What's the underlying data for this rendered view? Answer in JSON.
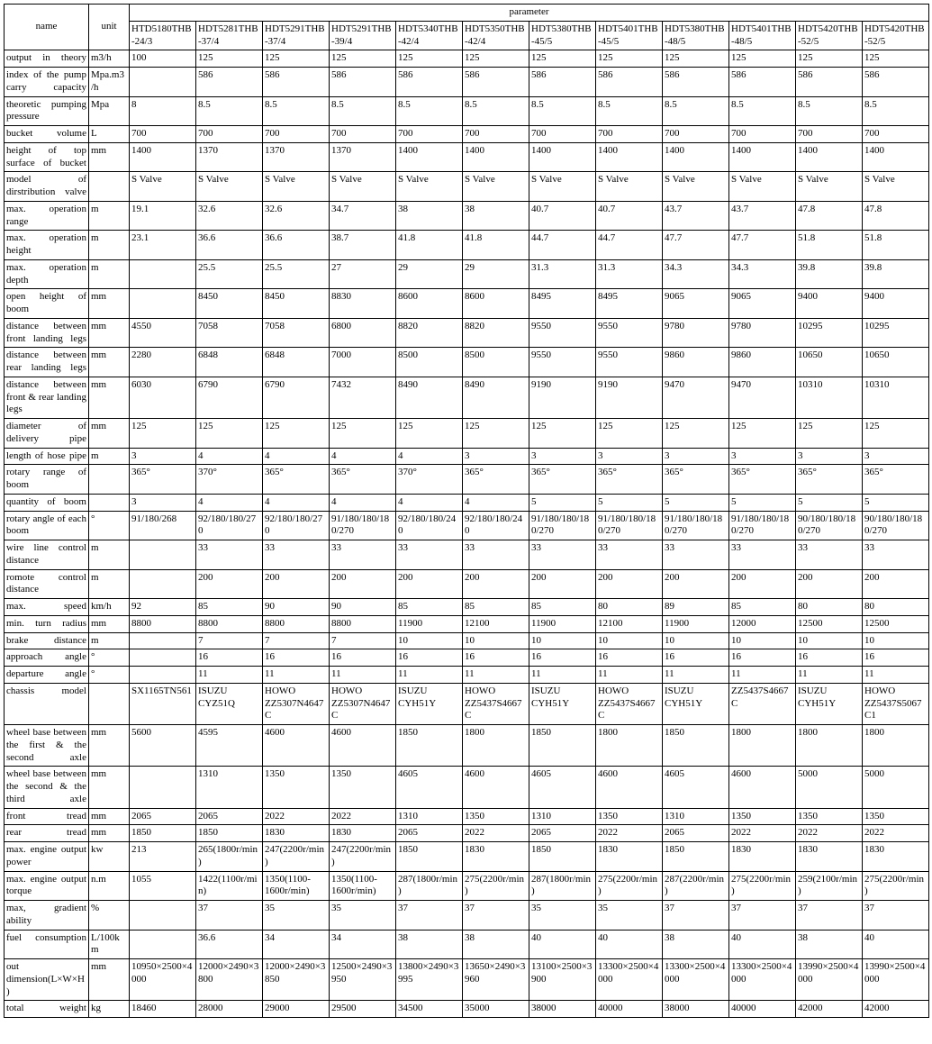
{
  "header": {
    "name": "name",
    "unit": "unit",
    "parameter": "parameter"
  },
  "colwidths": {
    "name": 94,
    "unit": 45,
    "param": 74
  },
  "models": [
    "HTD5180THB-24/3",
    "HDT5281THB-37/4",
    "HDT5291THB-37/4",
    "HDT5291THB-39/4",
    "HDT5340THB-42/4",
    "HDT5350THB-42/4",
    "HDT5380THB-45/5",
    "HDT5401THB-45/5",
    "HDT5380THB-48/5",
    "HDT5401THB-48/5",
    "HDT5420THB-52/5",
    "HDT5420THB-52/5"
  ],
  "rows": [
    {
      "name": "output in theory",
      "unit": "m3/h",
      "v": [
        "100",
        "125",
        "125",
        "125",
        "125",
        "125",
        "125",
        "125",
        "125",
        "125",
        "125",
        "125"
      ]
    },
    {
      "name": "index of the pump carry capacity",
      "unit": "Mpa.m3/h",
      "v": [
        "",
        "586",
        "586",
        "586",
        "586",
        "586",
        "586",
        "586",
        "586",
        "586",
        "586",
        "586"
      ]
    },
    {
      "name": "theoretic pumping pressure",
      "unit": "Mpa",
      "v": [
        "8",
        "8.5",
        "8.5",
        "8.5",
        "8.5",
        "8.5",
        "8.5",
        "8.5",
        "8.5",
        "8.5",
        "8.5",
        "8.5"
      ]
    },
    {
      "name": "bucket volume",
      "unit": "L",
      "v": [
        "700",
        "700",
        "700",
        "700",
        "700",
        "700",
        "700",
        "700",
        "700",
        "700",
        "700",
        "700"
      ]
    },
    {
      "name": "height of top surface of bucket",
      "unit": "mm",
      "v": [
        "1400",
        "1370",
        "1370",
        "1370",
        "1400",
        "1400",
        "1400",
        "1400",
        "1400",
        "1400",
        "1400",
        "1400"
      ]
    },
    {
      "name": "model of dirstribution valve",
      "unit": "",
      "v": [
        "S Valve",
        "S Valve",
        "S Valve",
        "S Valve",
        "S Valve",
        "S Valve",
        "S Valve",
        "S Valve",
        "S Valve",
        "S Valve",
        "S Valve",
        "S Valve"
      ]
    },
    {
      "name": "max. operation range",
      "unit": "m",
      "v": [
        "19.1",
        "32.6",
        "32.6",
        "34.7",
        "38",
        "38",
        "40.7",
        "40.7",
        "43.7",
        "43.7",
        "47.8",
        "47.8"
      ]
    },
    {
      "name": "max. operation height",
      "unit": "m",
      "v": [
        "23.1",
        "36.6",
        "36.6",
        "38.7",
        "41.8",
        "41.8",
        "44.7",
        "44.7",
        "47.7",
        "47.7",
        "51.8",
        "51.8"
      ]
    },
    {
      "name": "max. operation depth",
      "unit": "m",
      "v": [
        "",
        "25.5",
        "25.5",
        "27",
        "29",
        "29",
        "31.3",
        "31.3",
        "34.3",
        "34.3",
        "39.8",
        "39.8"
      ]
    },
    {
      "name": "open height of boom",
      "unit": "mm",
      "v": [
        "",
        "8450",
        "8450",
        "8830",
        "8600",
        "8600",
        "8495",
        "8495",
        "9065",
        "9065",
        "9400",
        "9400"
      ]
    },
    {
      "name": "distance between front landing legs",
      "unit": "mm",
      "v": [
        "4550",
        "7058",
        "7058",
        "6800",
        "8820",
        "8820",
        "9550",
        "9550",
        "9780",
        "9780",
        "10295",
        "10295"
      ]
    },
    {
      "name": "distance between rear landing legs",
      "unit": "mm",
      "v": [
        "2280",
        "6848",
        "6848",
        "7000",
        "8500",
        "8500",
        "9550",
        "9550",
        "9860",
        "9860",
        "10650",
        "10650"
      ]
    },
    {
      "name": "distance between front & rear landing legs",
      "unit": "mm",
      "v": [
        "6030",
        "6790",
        "6790",
        "7432",
        "8490",
        "8490",
        "9190",
        "9190",
        "9470",
        "9470",
        "10310",
        "10310"
      ]
    },
    {
      "name": "diameter of delivery pipe",
      "unit": "mm",
      "v": [
        "125",
        "125",
        "125",
        "125",
        "125",
        "125",
        "125",
        "125",
        "125",
        "125",
        "125",
        "125"
      ]
    },
    {
      "name": "length of hose pipe",
      "unit": "m",
      "v": [
        "3",
        "4",
        "4",
        "4",
        "4",
        "3",
        "3",
        "3",
        "3",
        "3",
        "3",
        "3"
      ]
    },
    {
      "name": "rotary range of boom",
      "unit": "",
      "v": [
        "365°",
        "370°",
        "365°",
        "365°",
        "370°",
        "365°",
        "365°",
        "365°",
        "365°",
        "365°",
        "365°",
        "365°"
      ]
    },
    {
      "name": "quantity of boom",
      "unit": "",
      "v": [
        "3",
        "4",
        "4",
        "4",
        "4",
        "4",
        "5",
        "5",
        "5",
        "5",
        "5",
        "5"
      ]
    },
    {
      "name": "rotary angle of each boom",
      "unit": "°",
      "v": [
        "91/180/268",
        "92/180/180/270",
        "92/180/180/270",
        "91/180/180/180/270",
        "92/180/180/240",
        "92/180/180/240",
        "91/180/180/180/270",
        "91/180/180/180/270",
        "91/180/180/180/270",
        "91/180/180/180/270",
        "90/180/180/180/270",
        "90/180/180/180/270"
      ]
    },
    {
      "name": "wire line control distance",
      "unit": "m",
      "v": [
        "",
        "33",
        "33",
        "33",
        "33",
        "33",
        "33",
        "33",
        "33",
        "33",
        "33",
        "33"
      ]
    },
    {
      "name": "romote control distance",
      "unit": "m",
      "v": [
        "",
        "200",
        "200",
        "200",
        "200",
        "200",
        "200",
        "200",
        "200",
        "200",
        "200",
        "200"
      ]
    },
    {
      "name": "max. speed",
      "unit": "km/h",
      "v": [
        "92",
        "85",
        "90",
        "90",
        "85",
        "85",
        "85",
        "80",
        "89",
        "85",
        "80",
        "80"
      ]
    },
    {
      "name": "min. turn radius",
      "unit": "mm",
      "v": [
        "8800",
        "8800",
        "8800",
        "8800",
        "11900",
        "12100",
        "11900",
        "12100",
        "11900",
        "12000",
        "12500",
        "12500"
      ]
    },
    {
      "name": "brake distance",
      "unit": "m",
      "v": [
        "",
        "7",
        "7",
        "7",
        "10",
        "10",
        "10",
        "10",
        "10",
        "10",
        "10",
        "10"
      ]
    },
    {
      "name": "approach angle",
      "unit": "°",
      "v": [
        "",
        "16",
        "16",
        "16",
        "16",
        "16",
        "16",
        "16",
        "16",
        "16",
        "16",
        "16"
      ]
    },
    {
      "name": "departure angle",
      "unit": "°",
      "v": [
        "",
        "11",
        "11",
        "11",
        "11",
        "11",
        "11",
        "11",
        "11",
        "11",
        "11",
        "11"
      ]
    },
    {
      "name": "chassis model",
      "unit": "",
      "v": [
        "SX1165TN561",
        "ISUZU CYZ51Q",
        "HOWO ZZ5307N4647C",
        "HOWO ZZ5307N4647C",
        "ISUZU CYH51Y",
        "HOWO ZZ5437S4667C",
        "ISUZU CYH51Y",
        "HOWO ZZ5437S4667C",
        "ISUZU CYH51Y",
        "ZZ5437S4667C",
        "ISUZU CYH51Y",
        "HOWO ZZ5437S5067C1"
      ]
    },
    {
      "name": "wheel base between the first & the second axle",
      "unit": "mm",
      "v": [
        "5600",
        "4595",
        "4600",
        "4600",
        "1850",
        "1800",
        "1850",
        "1800",
        "1850",
        "1800",
        "1800",
        "1800"
      ]
    },
    {
      "name": "wheel base between the second & the third axle",
      "unit": "mm",
      "v": [
        "",
        "1310",
        "1350",
        "1350",
        "4605",
        "4600",
        "4605",
        "4600",
        "4605",
        "4600",
        "5000",
        "5000"
      ]
    },
    {
      "name": "front tread",
      "unit": "mm",
      "v": [
        "2065",
        "2065",
        "2022",
        "2022",
        "1310",
        "1350",
        "1310",
        "1350",
        "1310",
        "1350",
        "1350",
        "1350"
      ]
    },
    {
      "name": "rear tread",
      "unit": "mm",
      "v": [
        "1850",
        "1850",
        "1830",
        "1830",
        "2065",
        "2022",
        "2065",
        "2022",
        "2065",
        "2022",
        "2022",
        "2022"
      ]
    },
    {
      "name": "max. engine output power",
      "unit": "kw",
      "v": [
        "213",
        "265(1800r/min)",
        "247(2200r/min)",
        "247(2200r/min)",
        "1850",
        "1830",
        "1850",
        "1830",
        "1850",
        "1830",
        "1830",
        "1830"
      ]
    },
    {
      "name": "max. engine output torque",
      "unit": "n.m",
      "v": [
        "1055",
        "1422(1100r/min)",
        "1350(1100-1600r/min)",
        "1350(1100-1600r/min)",
        "287(1800r/min)",
        "275(2200r/min)",
        "287(1800r/min)",
        "275(2200r/min)",
        "287(2200r/min)",
        "275(2200r/min)",
        "259(2100r/min)",
        "275(2200r/min)"
      ]
    },
    {
      "name": "max, gradient ability",
      "unit": "%",
      "v": [
        "",
        "37",
        "35",
        "35",
        "37",
        "37",
        "35",
        "35",
        "37",
        "37",
        "37",
        "37"
      ]
    },
    {
      "name": "fuel consumption",
      "unit": "L/100km",
      "v": [
        "",
        "36.6",
        "34",
        "34",
        "38",
        "38",
        "40",
        "40",
        "38",
        "40",
        "38",
        "40"
      ]
    },
    {
      "name": "out dimension(L×W×H)",
      "unit": "mm",
      "v": [
        "10950×2500×4000",
        "12000×2490×3800",
        "12000×2490×3850",
        "12500×2490×3950",
        "13800×2490×3995",
        "13650×2490×3960",
        "13100×2500×3900",
        "13300×2500×4000",
        "13300×2500×4000",
        "13300×2500×4000",
        "13990×2500×4000",
        "13990×2500×4000"
      ]
    },
    {
      "name": "total weight",
      "unit": "kg",
      "v": [
        "18460",
        "28000",
        "29000",
        "29500",
        "34500",
        "35000",
        "38000",
        "40000",
        "38000",
        "40000",
        "42000",
        "42000"
      ]
    }
  ]
}
